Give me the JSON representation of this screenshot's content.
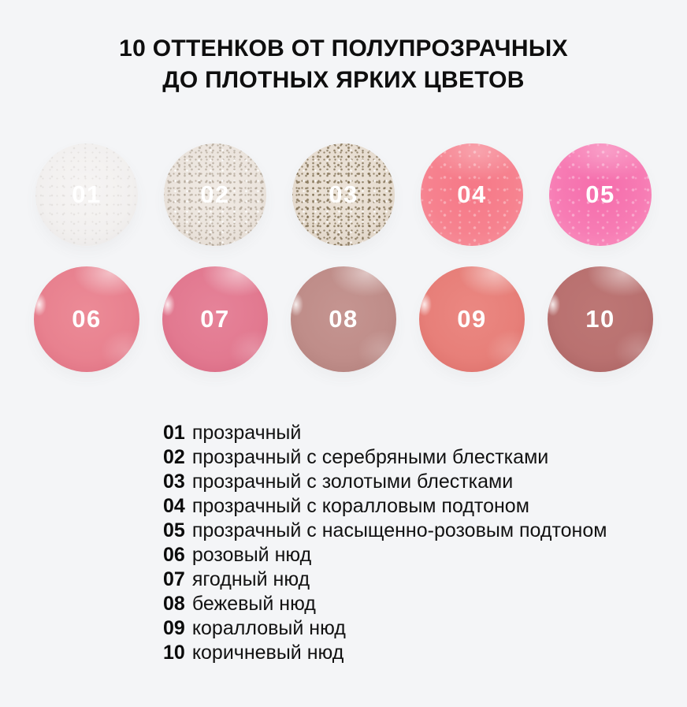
{
  "page": {
    "background_color": "#f4f5f7",
    "text_color": "#0e0e0e"
  },
  "title": {
    "line1": "10 ОТТЕНКОВ ОТ ПОЛУПРОЗРАЧНЫХ",
    "line2": "ДО ПЛОТНЫХ ЯРКИХ ЦВЕТОВ"
  },
  "swatches": [
    {
      "number": "01",
      "label": "прозрачный",
      "finish": "sheer",
      "colors": {
        "center": "#f6f4f3",
        "base": "#f2f0ef",
        "edge": "#e8e5e4"
      },
      "speckle": "rgba(184,178,172,0.45)"
    },
    {
      "number": "02",
      "label": "прозрачный с серебряными блестками",
      "finish": "glitter",
      "colors": {
        "center": "#f0eae4",
        "base": "#ebe4dd",
        "edge": "#ded4ca"
      },
      "speckle": "rgba(148,134,116,0.5)"
    },
    {
      "number": "03",
      "label": "прозрачный с золотыми блестками",
      "finish": "glitter",
      "colors": {
        "center": "#ece3d8",
        "base": "#e7ddd1",
        "edge": "#d8cbbc"
      },
      "speckle": "rgba(104,86,54,0.65)"
    },
    {
      "number": "04",
      "label": "прозрачный с коралловым подтоном",
      "finish": "jelly",
      "colors": {
        "center": "#f57887",
        "base": "#f6828f",
        "edge": "#f795a0"
      },
      "speckle": "rgba(255,255,255,0.3)"
    },
    {
      "number": "05",
      "label": "прозрачный с насыщенно-розовым подтоном",
      "finish": "jelly",
      "colors": {
        "center": "#f56cab",
        "base": "#f77cb4",
        "edge": "#f997c2"
      },
      "speckle": "rgba(255,255,255,0.3)"
    },
    {
      "number": "06",
      "label": "розовый нюд",
      "finish": "glossy",
      "colors": {
        "center": "#ec8b97",
        "base": "#e8818f",
        "edge": "#db6c7e"
      },
      "speckle": ""
    },
    {
      "number": "07",
      "label": "ягодный нюд",
      "finish": "glossy",
      "colors": {
        "center": "#e68399",
        "base": "#e27990",
        "edge": "#d4657f"
      },
      "speckle": ""
    },
    {
      "number": "08",
      "label": "бежевый нюд",
      "finish": "glossy",
      "colors": {
        "center": "#c59591",
        "base": "#bf8d89",
        "edge": "#ae7c78"
      },
      "speckle": ""
    },
    {
      "number": "09",
      "label": "коралловый нюд",
      "finish": "glossy",
      "colors": {
        "center": "#eb8882",
        "base": "#e77f79",
        "edge": "#d96b66"
      },
      "speckle": ""
    },
    {
      "number": "10",
      "label": "коричневый нюд",
      "finish": "glossy",
      "colors": {
        "center": "#bd7775",
        "base": "#b97170",
        "edge": "#a65f5e"
      },
      "speckle": ""
    }
  ]
}
